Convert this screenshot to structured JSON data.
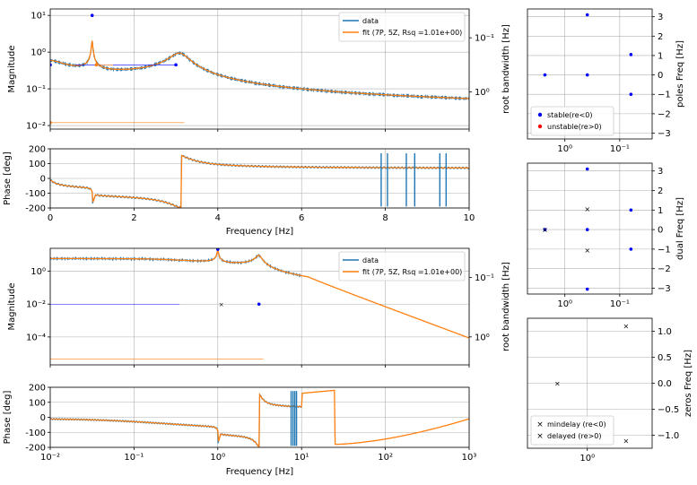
{
  "colors": {
    "data": "#1f77b4",
    "fit": "#ff7f0e",
    "stable": "#0000ff",
    "unstable": "#ff0000",
    "delayed": "#008000",
    "grid": "#b0b0b0"
  },
  "chart_data": [
    {
      "id": "lin_mag",
      "type": "line",
      "xscale": "linear",
      "xlim": [
        0,
        10
      ],
      "yscale": "log",
      "ylim": [
        0.008,
        15
      ],
      "ylabel": "Magnitude",
      "yticks": [
        {
          "v": 10,
          "label": "10¹"
        },
        {
          "v": 1,
          "label": "10⁰"
        },
        {
          "v": 0.1,
          "label": "10⁻¹"
        },
        {
          "v": 0.01,
          "label": "10⁻²"
        }
      ],
      "y2label": "root bandwidth [Hz]",
      "y2ticks": [
        {
          "label": "10⁻¹",
          "frac": 0.24
        },
        {
          "label": "10⁰",
          "frac": 0.69
        }
      ],
      "legend": {
        "placement": "top-right",
        "entries": [
          {
            "name": "data",
            "color": "#1f77b4"
          },
          {
            "name": "fit (7P, 5Z, Rsq =1.01e+00)",
            "color": "#ff7f0e"
          }
        ]
      },
      "resonances": [
        {
          "f": 1.0,
          "q": 35,
          "gain": 1.0
        },
        {
          "f": 3.1,
          "q": 7,
          "gain": 2.3
        }
      ],
      "poles_markers": [
        {
          "x": 1.0,
          "y": 10,
          "color": "#0000ff"
        },
        {
          "x": 0.0,
          "y": 0.45,
          "color": "#0000ff"
        },
        {
          "x": 3.0,
          "y": 0.45,
          "color": "#0000ff"
        },
        {
          "x": 1.1,
          "y": 0.45,
          "color": "#ff7f0e"
        },
        {
          "x": 0.0,
          "y": 0.012,
          "color": "#ff7f0e"
        }
      ]
    },
    {
      "id": "lin_phase",
      "type": "line",
      "xscale": "linear",
      "xlim": [
        0,
        10
      ],
      "ylim": [
        -200,
        200
      ],
      "yticks": [
        200,
        100,
        0,
        -100,
        -200
      ],
      "ylabel": "Phase [deg]",
      "xlabel": "Frequency [Hz]",
      "xticks": [
        0,
        2,
        4,
        6,
        8,
        10
      ],
      "spikes_x": [
        7.9,
        8.05,
        8.5,
        8.7,
        9.3,
        9.45
      ]
    },
    {
      "id": "log_mag",
      "type": "line",
      "xscale": "log",
      "xlim": [
        0.01,
        1000
      ],
      "yscale": "log",
      "ylim": [
        2e-06,
        25
      ],
      "ylabel": "Magnitude",
      "yticks": [
        {
          "v": 1,
          "label": "10⁰"
        },
        {
          "v": 0.01,
          "label": "10⁻²"
        },
        {
          "v": 0.0001,
          "label": "10⁻⁴"
        }
      ],
      "y2label": "root bandwidth [Hz]",
      "y2ticks": [
        {
          "label": "10⁻¹",
          "frac": 0.25
        },
        {
          "label": "10⁰",
          "frac": 0.76
        }
      ],
      "legend": {
        "placement": "top-right",
        "entries": [
          {
            "name": "data",
            "color": "#1f77b4"
          },
          {
            "name": "fit (7P, 5Z, Rsq =1.01e+00)",
            "color": "#ff7f0e"
          }
        ]
      },
      "data_xmax": 10
    },
    {
      "id": "log_phase",
      "type": "line",
      "xscale": "log",
      "xlim": [
        0.01,
        1000
      ],
      "ylim": [
        -200,
        200
      ],
      "yticks": [
        200,
        100,
        0,
        -100,
        -200
      ],
      "ylabel": "Phase [deg]",
      "xlabel": "Frequency [Hz]",
      "xticks": [
        {
          "v": 0.01,
          "label": "10⁻²"
        },
        {
          "v": 0.1,
          "label": "10⁻¹"
        },
        {
          "v": 1,
          "label": "10⁰"
        },
        {
          "v": 10,
          "label": "10¹"
        },
        {
          "v": 100,
          "label": "10²"
        },
        {
          "v": 1000,
          "label": "10³"
        }
      ],
      "spikes_x": [
        7.5,
        7.9,
        8.3,
        8.7
      ]
    },
    {
      "id": "poles",
      "type": "scatter",
      "xscale": "log-reversed",
      "xticks": [
        {
          "label": "10⁰",
          "frac": 0.3
        },
        {
          "label": "10⁻¹",
          "frac": 0.74
        }
      ],
      "ylim": [
        -3.3,
        3.4
      ],
      "yticks": [
        3,
        2,
        1,
        0,
        -1,
        -2,
        -3
      ],
      "ylabel": "poles Freq [Hz]",
      "legend": {
        "placement": "lower-left",
        "entries": [
          {
            "name": "stable(re<0)",
            "color": "#0000ff"
          },
          {
            "name": "unstable(re>0)",
            "color": "#ff0000"
          }
        ]
      },
      "points": [
        {
          "xf": 0.48,
          "y": 3.1,
          "c": "#0000ff"
        },
        {
          "xf": 0.14,
          "y": 0.0,
          "c": "#0000ff"
        },
        {
          "xf": 0.48,
          "y": 0.0,
          "c": "#0000ff"
        },
        {
          "xf": 0.83,
          "y": 1.05,
          "c": "#0000ff"
        },
        {
          "xf": 0.83,
          "y": -1.0,
          "c": "#0000ff"
        }
      ]
    },
    {
      "id": "dual",
      "type": "scatter",
      "xscale": "log-reversed",
      "xticks": [
        {
          "label": "10⁰",
          "frac": 0.3
        },
        {
          "label": "10⁻¹",
          "frac": 0.74
        }
      ],
      "ylim": [
        -3.3,
        3.4
      ],
      "yticks": [
        3,
        2,
        1,
        0,
        -1,
        -2,
        -3
      ],
      "ylabel": "dual Freq [Hz]",
      "points": [
        {
          "xf": 0.48,
          "y": 3.1,
          "c": "#0000ff",
          "m": "dot"
        },
        {
          "xf": 0.14,
          "y": 0.0,
          "c": "#0000ff",
          "m": "dot"
        },
        {
          "xf": 0.48,
          "y": 0.0,
          "c": "#0000ff",
          "m": "dot"
        },
        {
          "xf": 0.83,
          "y": 1.0,
          "c": "#0000ff",
          "m": "dot"
        },
        {
          "xf": 0.83,
          "y": -1.0,
          "c": "#0000ff",
          "m": "dot"
        },
        {
          "xf": 0.48,
          "y": -3.05,
          "c": "#0000ff",
          "m": "dot"
        },
        {
          "xf": 0.14,
          "y": 0.0,
          "c": "#ff7f0e",
          "m": "x"
        },
        {
          "xf": 0.48,
          "y": 1.05,
          "c": "#ff7f0e",
          "m": "x"
        },
        {
          "xf": 0.48,
          "y": -1.05,
          "c": "#ff7f0e",
          "m": "x"
        }
      ]
    },
    {
      "id": "zeros",
      "type": "scatter",
      "xscale": "log-reversed",
      "xticks": [
        {
          "label": "10⁰",
          "frac": 0.48
        }
      ],
      "ylim": [
        -1.25,
        1.25
      ],
      "yticks": [
        1.0,
        0.5,
        0.0,
        -0.5,
        -1.0
      ],
      "ytick_labels": [
        "1.0",
        "0.5",
        "0.0",
        "−0.5",
        "−1.0"
      ],
      "ylabel": "zeros Freq [Hz]",
      "legend": {
        "placement": "lower-left",
        "entries": [
          {
            "name": "mindelay (re<0)",
            "color": "#ff7f0e"
          },
          {
            "name": "delayed (re>0)",
            "color": "#008000"
          }
        ]
      },
      "points": [
        {
          "xf": 0.24,
          "y": 0.0,
          "c": "#ff7f0e"
        },
        {
          "xf": 0.79,
          "y": 1.1,
          "c": "#ff7f0e"
        },
        {
          "xf": 0.79,
          "y": -1.1,
          "c": "#ff7f0e"
        }
      ]
    }
  ]
}
